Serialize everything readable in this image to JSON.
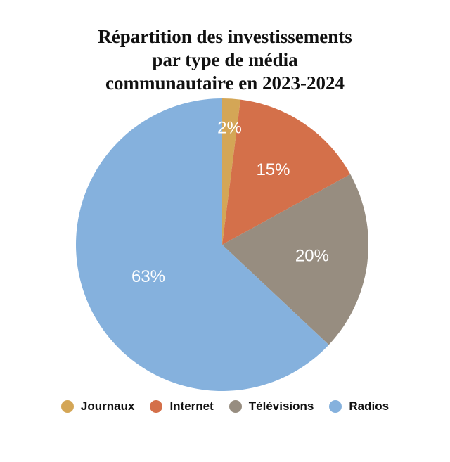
{
  "chart_data": {
    "type": "pie",
    "title_lines": [
      "Répartition des investissements",
      "par type de média",
      "communautaire en 2023-2024"
    ],
    "categories": [
      "Journaux",
      "Internet",
      "Télévisions",
      "Radios"
    ],
    "values": [
      2,
      15,
      20,
      63
    ],
    "value_labels": [
      "2%",
      "15%",
      "20%",
      "63%"
    ],
    "colors": [
      "#D4A656",
      "#D4704A",
      "#978D80",
      "#85B1DD"
    ],
    "legend_position": "bottom"
  }
}
